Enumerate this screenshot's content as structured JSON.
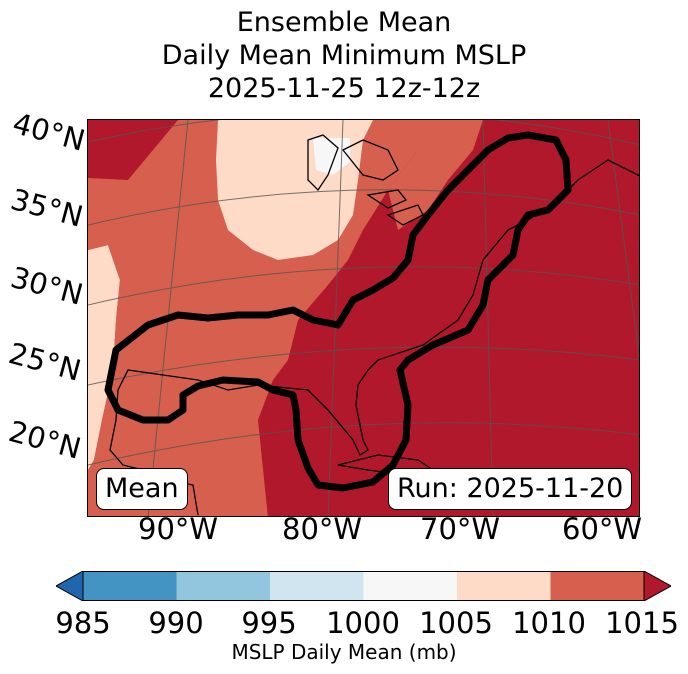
{
  "title": {
    "line1": "Ensemble Mean",
    "line2": "Daily Mean Minimum MSLP",
    "line3": "2025-11-25 12z-12z"
  },
  "lat_labels": [
    "40°N",
    "35°N",
    "30°N",
    "25°N",
    "20°N"
  ],
  "lon_labels": [
    "90°W",
    "80°W",
    "70°W",
    "60°W"
  ],
  "boxes": {
    "mean": "Mean",
    "run": "Run: 2025-11-20"
  },
  "colorbar": {
    "ticks": [
      "985",
      "990",
      "995",
      "1000",
      "1005",
      "1010",
      "1015"
    ],
    "label": "MSLP Daily Mean (mb)",
    "colors": [
      "#2166ac",
      "#4393c3",
      "#92c5de",
      "#d1e5f0",
      "#f7f7f7",
      "#fddbc7",
      "#d6604d",
      "#b2182b"
    ]
  }
}
